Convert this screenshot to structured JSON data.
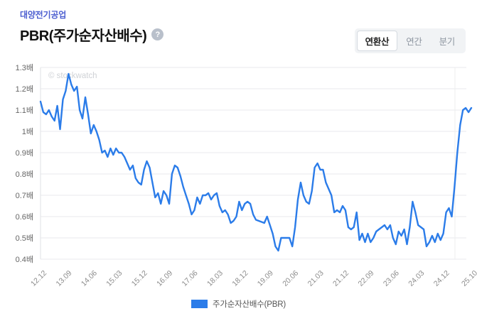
{
  "header": {
    "company": "대양전기공업",
    "title": "PBR(주가순자산배수)",
    "help_icon_glyph": "?",
    "period_tabs": [
      {
        "label": "연환산",
        "selected": true
      },
      {
        "label": "연간",
        "selected": false
      },
      {
        "label": "분기",
        "selected": false
      }
    ]
  },
  "watermark": "© stockwatch",
  "colors": {
    "series_blue": "#2b7ce9",
    "company_text": "#4c5ed0",
    "grid": "#e9eaec",
    "axis_line": "#dfe1e4",
    "y_label_text": "#666666",
    "x_label_text": "#8c8c8c",
    "watermark_text": "#cfd2d6"
  },
  "legend": {
    "label": "주가순자산배수(PBR)"
  },
  "chart_data": {
    "type": "line",
    "title": "PBR(주가순자산배수)",
    "unit_suffix": "배",
    "ylim": [
      0.4,
      1.3
    ],
    "y_tick_step": 0.1,
    "y_tick_labels": [
      "1.3배",
      "1.2배",
      "1.1배",
      "1배",
      "0.9배",
      "0.8배",
      "0.7배",
      "0.6배",
      "0.5배",
      "0.4배"
    ],
    "x_tick_labels": [
      "12.12",
      "13.09",
      "14.06",
      "15.03",
      "15.12",
      "16.09",
      "17.06",
      "18.03",
      "18.12",
      "19.09",
      "20.06",
      "21.03",
      "21.12",
      "22.09",
      "23.06",
      "24.03",
      "24.12",
      "25.10"
    ],
    "x_tick_month_indices": [
      0,
      9,
      18,
      27,
      36,
      45,
      54,
      63,
      72,
      81,
      90,
      99,
      108,
      117,
      126,
      135,
      144,
      154
    ],
    "months_total": 155,
    "grid": "horizontal",
    "legend_position": "bottom-center",
    "series": [
      {
        "name": "주가순자산배수(PBR)",
        "values": [
          1.14,
          1.09,
          1.08,
          1.1,
          1.07,
          1.05,
          1.12,
          1.01,
          1.15,
          1.19,
          1.27,
          1.22,
          1.19,
          1.21,
          1.1,
          1.06,
          1.16,
          1.08,
          0.99,
          1.03,
          1.0,
          0.96,
          0.9,
          0.91,
          0.88,
          0.92,
          0.89,
          0.92,
          0.9,
          0.9,
          0.88,
          0.85,
          0.82,
          0.84,
          0.78,
          0.76,
          0.75,
          0.82,
          0.86,
          0.83,
          0.76,
          0.69,
          0.71,
          0.66,
          0.72,
          0.7,
          0.66,
          0.8,
          0.84,
          0.83,
          0.79,
          0.74,
          0.7,
          0.66,
          0.61,
          0.63,
          0.69,
          0.66,
          0.7,
          0.7,
          0.71,
          0.68,
          0.7,
          0.71,
          0.65,
          0.62,
          0.63,
          0.61,
          0.57,
          0.58,
          0.6,
          0.67,
          0.63,
          0.66,
          0.67,
          0.66,
          0.61,
          0.585,
          0.58,
          0.575,
          0.57,
          0.6,
          0.56,
          0.52,
          0.46,
          0.44,
          0.5,
          0.5,
          0.5,
          0.5,
          0.46,
          0.55,
          0.68,
          0.76,
          0.7,
          0.67,
          0.66,
          0.72,
          0.83,
          0.85,
          0.82,
          0.82,
          0.76,
          0.73,
          0.7,
          0.62,
          0.63,
          0.62,
          0.65,
          0.63,
          0.55,
          0.54,
          0.55,
          0.62,
          0.49,
          0.52,
          0.48,
          0.52,
          0.48,
          0.5,
          0.53,
          0.54,
          0.55,
          0.56,
          0.54,
          0.56,
          0.5,
          0.47,
          0.53,
          0.51,
          0.54,
          0.47,
          0.55,
          0.67,
          0.62,
          0.56,
          0.55,
          0.54,
          0.46,
          0.48,
          0.51,
          0.48,
          0.52,
          0.49,
          0.52,
          0.62,
          0.64,
          0.6,
          0.74,
          0.9,
          1.03,
          1.1,
          1.11,
          1.09,
          1.11
        ]
      }
    ]
  }
}
